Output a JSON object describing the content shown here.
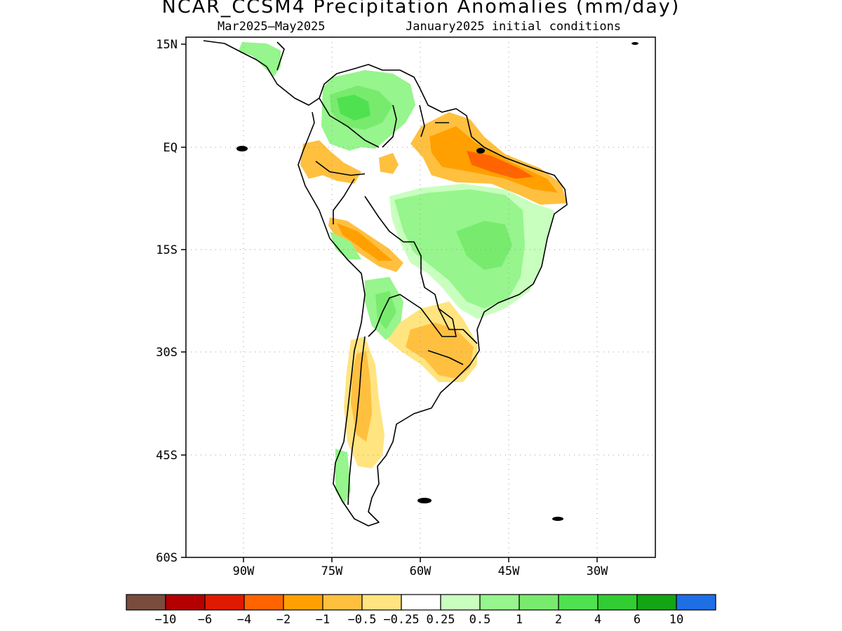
{
  "title": "NCAR_CCSM4 Precipitation Anomalies (mm/day)",
  "subtitle_left": "Mar2025–May2025",
  "subtitle_right": "January2025 initial conditions",
  "map": {
    "lon_ticks": [
      "90W",
      "75W",
      "60W",
      "45W",
      "30W"
    ],
    "lat_ticks": [
      "15N",
      "EQ",
      "15S",
      "30S",
      "45S",
      "60S"
    ],
    "grid": "dotted",
    "region": "South America"
  },
  "colorbar": {
    "colors": [
      "#7a4c3e",
      "#b40000",
      "#e01a00",
      "#ff6400",
      "#ffa000",
      "#ffc040",
      "#ffe480",
      "#ffffff",
      "#c8ffbe",
      "#96f58c",
      "#78eb6e",
      "#50e150",
      "#32cd32",
      "#13a513",
      "#1e6ee6"
    ],
    "labels": [
      "−10",
      "−6",
      "−4",
      "−2",
      "−1",
      "−0.5",
      "−0.25",
      "0.25",
      "0.5",
      "1",
      "2",
      "4",
      "6",
      "10"
    ]
  }
}
